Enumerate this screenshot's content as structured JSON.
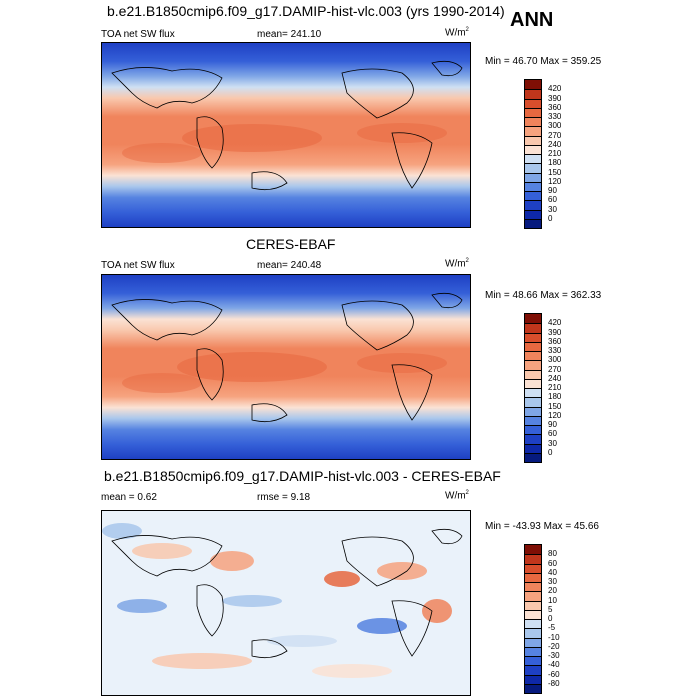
{
  "season": "ANN",
  "colors": {
    "warm": [
      "#fbe2d4",
      "#f9c8ae",
      "#f6a37f",
      "#f0845c",
      "#e76840",
      "#d84e2c",
      "#c0361c",
      "#a0240f",
      "#7f0f05"
    ],
    "cool": [
      "#eaf2fa",
      "#cfe0f3",
      "#a9c7ec",
      "#7fa6e6",
      "#5683e1",
      "#3560d8",
      "#1e40c4",
      "#0e28a8",
      "#061a7e"
    ],
    "land_line": "#000000"
  },
  "panels": [
    {
      "title": "b.e21.B1850cmip6.f09_g17.DAMIP-hist-vlc.003 (yrs 1990-2014)",
      "left_label": "TOA net SW flux",
      "center_label": "mean= 241.10",
      "units": "W/m",
      "units_sup": "2",
      "minmax": "Min =  46.70 Max = 359.25",
      "colorbar_labels": [
        "420",
        "390",
        "360",
        "330",
        "300",
        "270",
        "240",
        "210",
        "180",
        "150",
        "120",
        "90",
        "60",
        "30",
        "0"
      ]
    },
    {
      "title": "CERES-EBAF",
      "left_label": "TOA net SW flux",
      "center_label": "mean= 240.48",
      "units": "W/m",
      "units_sup": "2",
      "minmax": "Min =  48.66 Max = 362.33",
      "colorbar_labels": [
        "420",
        "390",
        "360",
        "330",
        "300",
        "270",
        "240",
        "210",
        "180",
        "150",
        "120",
        "90",
        "60",
        "30",
        "0"
      ]
    },
    {
      "title": "b.e21.B1850cmip6.f09_g17.DAMIP-hist-vlc.003 - CERES-EBAF",
      "left_label": "mean =   0.62",
      "center_label": "rmse =   9.18",
      "units": "W/m",
      "units_sup": "2",
      "minmax": "Min = -43.93 Max =  45.66",
      "colorbar_labels": [
        "80",
        "60",
        "40",
        "30",
        "20",
        "10",
        "5",
        "0",
        "-5",
        "-10",
        "-20",
        "-30",
        "-40",
        "-60",
        "-80"
      ]
    }
  ]
}
